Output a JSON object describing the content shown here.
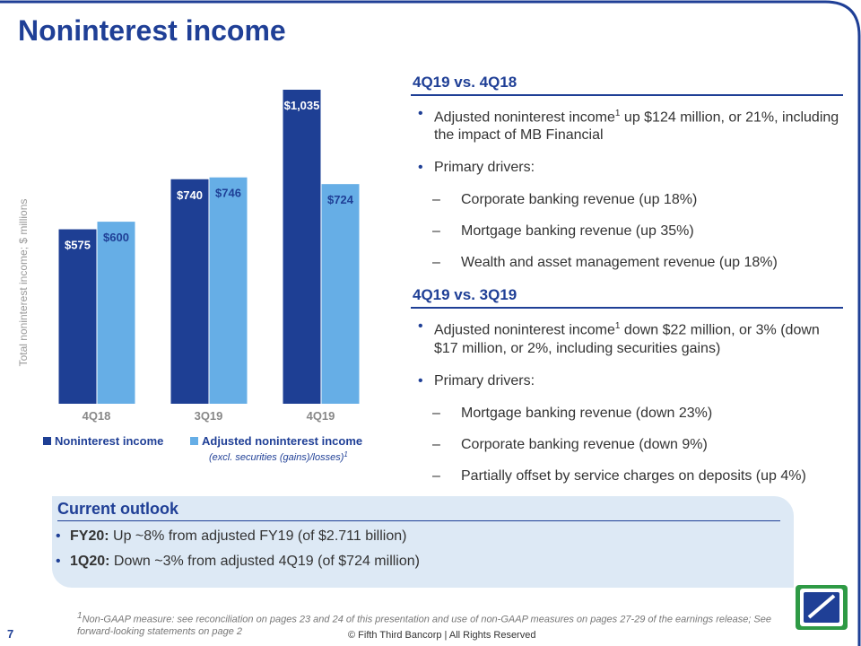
{
  "header": {
    "title": "Noninterest income"
  },
  "chart_data": {
    "type": "bar",
    "y_label": "Total noninterest income; $ millions",
    "categories": [
      "4Q18",
      "3Q19",
      "4Q19"
    ],
    "series": [
      {
        "name": "Noninterest income",
        "color": "#1e3f94",
        "values": [
          575,
          740,
          1035
        ],
        "value_labels": [
          "$575",
          "$740",
          "$1,035"
        ]
      },
      {
        "name": "Adjusted noninterest income",
        "color": "#66aee6",
        "values": [
          600,
          746,
          724
        ],
        "value_labels": [
          "$600",
          "$746",
          "$724"
        ]
      }
    ],
    "legend_note": "(excl. securities (gains)/losses)",
    "legend_note_sup": "1"
  },
  "sections": [
    {
      "heading": "4Q19 vs. 4Q18",
      "items": [
        {
          "pre": "Adjusted noninterest income",
          "sup": "1",
          "post": " up $124 million, or 21%, including the impact of MB Financial"
        },
        {
          "text": "Primary drivers:",
          "subitems": [
            "Corporate banking revenue (up 18%)",
            "Mortgage banking revenue (up 35%)",
            "Wealth and asset management revenue (up 18%)"
          ]
        }
      ]
    },
    {
      "heading": "4Q19 vs. 3Q19",
      "items": [
        {
          "pre": "Adjusted noninterest income",
          "sup": "1",
          "post": " down $22 million, or 3% (down $17 million, or 2%, including securities gains)"
        },
        {
          "text": "Primary drivers:",
          "subitems": [
            "Mortgage banking revenue (down 23%)",
            "Corporate banking revenue (down 9%)",
            "Partially offset by service charges on deposits (up 4%)"
          ]
        }
      ]
    }
  ],
  "outlook": {
    "title": "Current outlook",
    "items": [
      {
        "bold": "FY20:",
        "text": " Up ~8% from adjusted FY19 (of $2.711 billion)"
      },
      {
        "bold": "1Q20:",
        "text": " Down ~3% from adjusted 4Q19 (of $724 million)"
      }
    ]
  },
  "footnote": {
    "sup": "1",
    "text": "Non-GAAP measure: see reconciliation on pages 23 and 24 of this presentation and use of non-GAAP measures on pages 27-29 of the earnings release; See forward-looking statements on page 2"
  },
  "footer": {
    "page": "7",
    "copyright": "© Fifth Third Bancorp | All Rights Reserved"
  }
}
